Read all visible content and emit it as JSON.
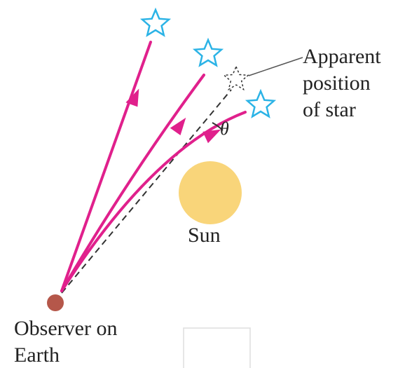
{
  "apparent_label": {
    "lines": [
      "Apparent",
      "position",
      "of star"
    ]
  },
  "angle_label": "θ",
  "sun_label": "Sun",
  "observer_label": {
    "lines": [
      "Observer on",
      "Earth"
    ]
  }
}
